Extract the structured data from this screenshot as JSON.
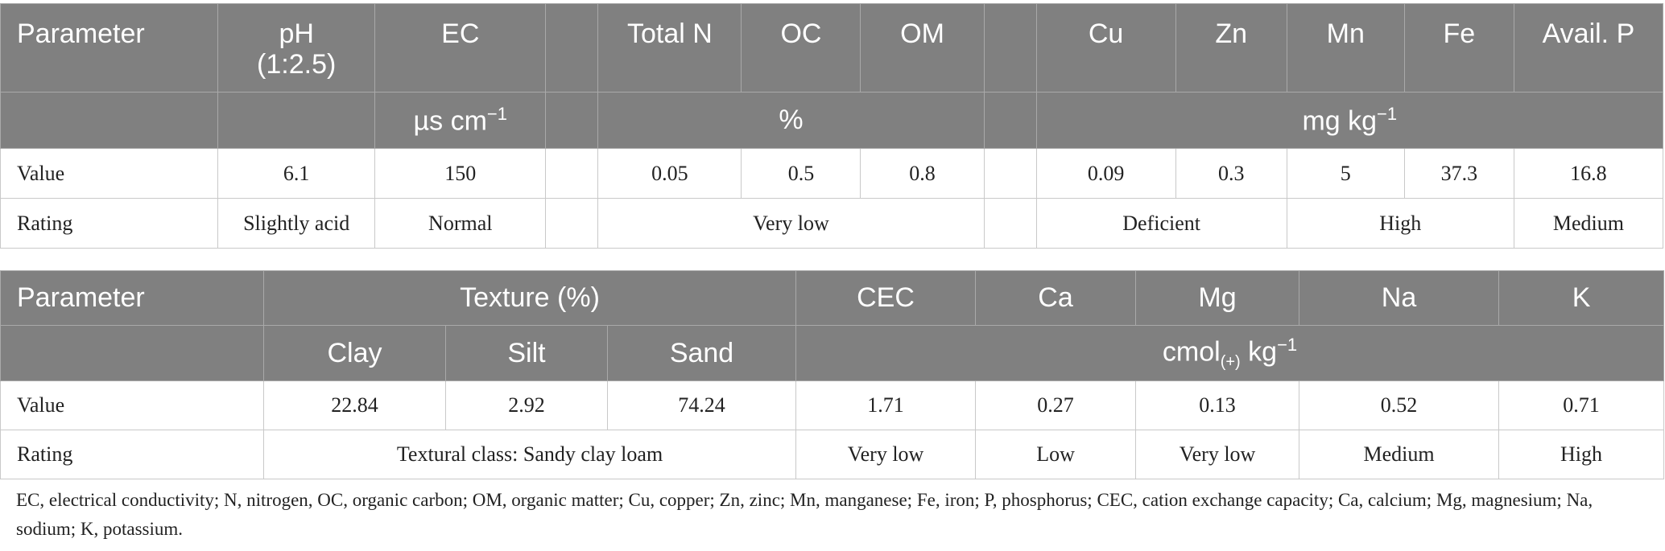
{
  "table1": {
    "headers": [
      "Parameter",
      "pH (1:2.5)",
      "EC",
      "",
      "Total N",
      "OC",
      "OM",
      "",
      "Cu",
      "Zn",
      "Mn",
      "Fe",
      "Avail. P"
    ],
    "units": {
      "ec": "µs cm",
      "ec_sup": "−1",
      "percent": "%",
      "micro": "mg kg",
      "micro_sup": "−1"
    },
    "value_row": [
      "Value",
      "6.1",
      "150",
      "",
      "0.05",
      "0.5",
      "0.8",
      "",
      "0.09",
      "0.3",
      "5",
      "37.3",
      "16.8"
    ],
    "rating_row": {
      "label": "Rating",
      "ph": "Slightly acid",
      "ec": "Normal",
      "n_oc_om": "Very low",
      "cu_zn": "Deficient",
      "mn_fe": "High",
      "p": "Medium"
    }
  },
  "table2": {
    "headers": [
      "Parameter",
      "Texture (%)",
      "CEC",
      "Ca",
      "Mg",
      "Na",
      "K"
    ],
    "subheaders": [
      "Clay",
      "Silt",
      "Sand"
    ],
    "units": {
      "base": "cmol",
      "sub": "(+)",
      "rest": " kg",
      "sup": "−1"
    },
    "value_row": [
      "Value",
      "22.84",
      "2.92",
      "74.24",
      "1.71",
      "0.27",
      "0.13",
      "0.52",
      "0.71"
    ],
    "rating_row": [
      "Rating",
      "Textural class: Sandy clay loam",
      "Very low",
      "Low",
      "Very low",
      "Medium",
      "High"
    ]
  },
  "footnote": "EC, electrical conductivity; N, nitrogen, OC, organic carbon; OM, organic matter; Cu, copper; Zn, zinc; Mn, manganese; Fe, iron; P, phosphorus; CEC, cation exchange capacity; Ca, calcium; Mg, magnesium; Na, sodium; K, potassium."
}
